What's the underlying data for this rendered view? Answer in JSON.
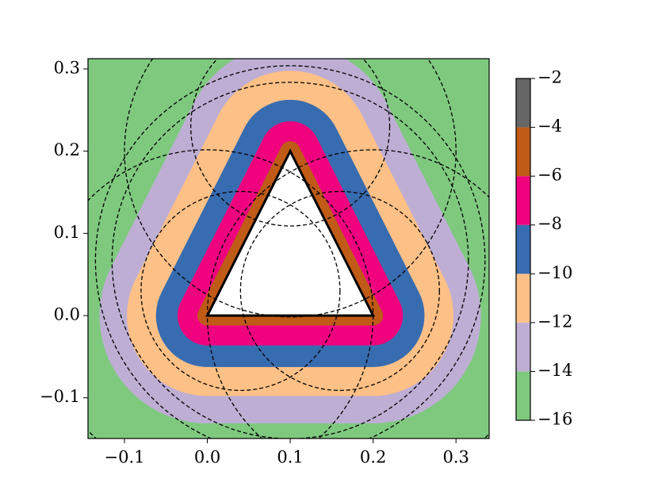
{
  "chart_data": {
    "type": "contour",
    "xlim": [
      -0.144,
      0.34
    ],
    "ylim": [
      -0.1495,
      0.3125
    ],
    "xticks": [
      {
        "value": -0.1,
        "label": "−0.1"
      },
      {
        "value": 0,
        "label": "0.0"
      },
      {
        "value": 0.1,
        "label": "0.1"
      },
      {
        "value": 0.2,
        "label": "0.2"
      },
      {
        "value": 0.3,
        "label": "0.3"
      }
    ],
    "yticks": [
      {
        "value": -0.1,
        "label": "−0.1"
      },
      {
        "value": 0,
        "label": "0.0"
      },
      {
        "value": 0.1,
        "label": "0.1"
      },
      {
        "value": 0.2,
        "label": "0.2"
      },
      {
        "value": 0.3,
        "label": "0.3"
      }
    ],
    "triangle": {
      "x": [
        0,
        0.2,
        0.1
      ],
      "y": [
        0,
        0,
        0.2
      ]
    },
    "levels": [
      -16,
      -14,
      -12,
      -10,
      -8,
      -6,
      -4,
      -2
    ],
    "level_ticks": [
      {
        "value": -16,
        "label": "−16"
      },
      {
        "value": -14,
        "label": "−14"
      },
      {
        "value": -12,
        "label": "−12"
      },
      {
        "value": -10,
        "label": "−10"
      },
      {
        "value": -8,
        "label": "−8"
      },
      {
        "value": -6,
        "label": "−6"
      },
      {
        "value": -4,
        "label": "−4"
      },
      {
        "value": -2,
        "label": "−2"
      }
    ],
    "colors": [
      "#7fc97f",
      "#beaed4",
      "#fdc086",
      "#386cb0",
      "#f0027f",
      "#bf5b17",
      "#666666"
    ]
  }
}
